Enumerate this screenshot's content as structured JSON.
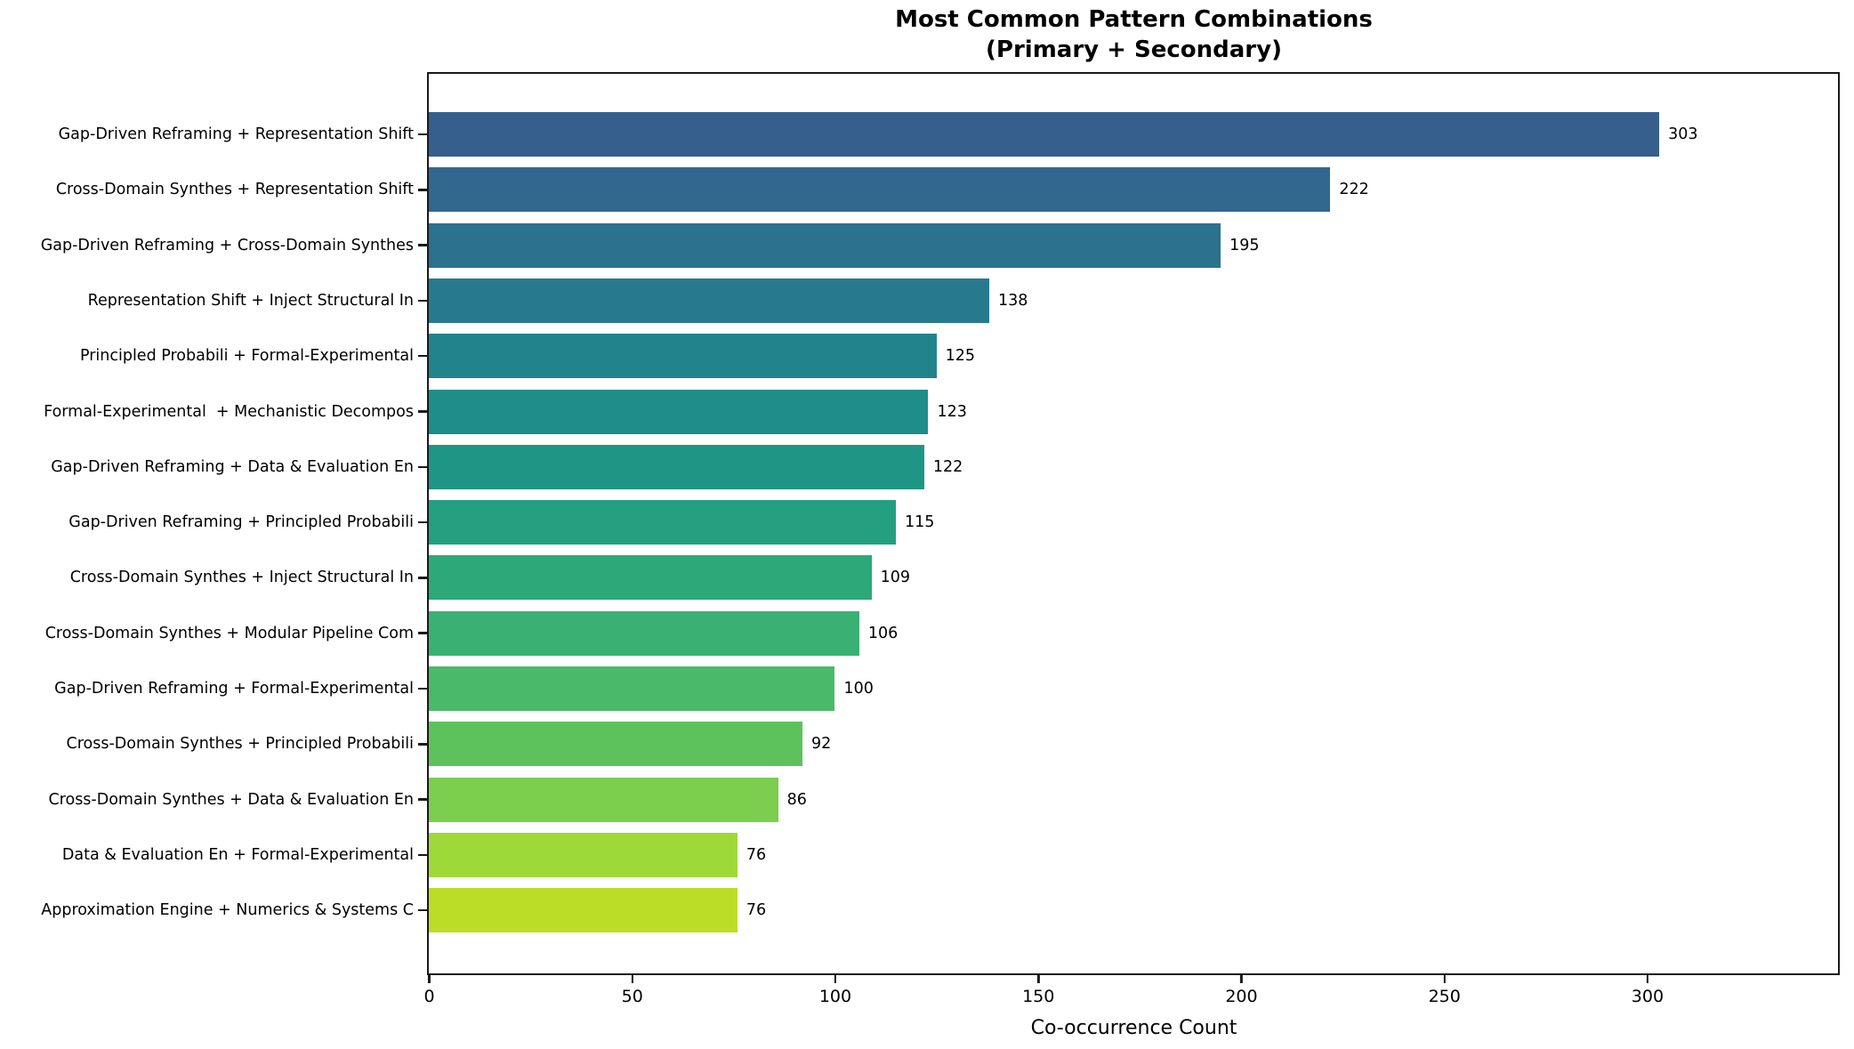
{
  "chart_data": {
    "type": "bar",
    "orientation": "horizontal",
    "title": "Most Common Pattern Combinations\n(Primary + Secondary)",
    "xlabel": "Co-occurrence Count",
    "ylabel": "",
    "xlim": [
      0,
      347
    ],
    "x_ticks": [
      0,
      50,
      100,
      150,
      200,
      250,
      300
    ],
    "grid": false,
    "legend": false,
    "background_color": "#ffffff",
    "axis_color": "#1a1a1a",
    "categories": [
      "Gap-Driven Reframing + Representation Shift",
      "Cross-Domain Synthes + Representation Shift",
      "Gap-Driven Reframing + Cross-Domain Synthes",
      "Representation Shift + Inject Structural In",
      "Principled Probabili + Formal-Experimental",
      "Formal-Experimental  + Mechanistic Decompos",
      "Gap-Driven Reframing + Data & Evaluation En",
      "Gap-Driven Reframing + Principled Probabili",
      "Cross-Domain Synthes + Inject Structural In",
      "Cross-Domain Synthes + Modular Pipeline Com",
      "Gap-Driven Reframing + Formal-Experimental",
      "Cross-Domain Synthes + Principled Probabili",
      "Cross-Domain Synthes + Data & Evaluation En",
      "Data & Evaluation En + Formal-Experimental",
      "Approximation Engine + Numerics & Systems C"
    ],
    "values": [
      303,
      222,
      195,
      138,
      125,
      123,
      122,
      115,
      109,
      106,
      100,
      92,
      86,
      76,
      76
    ],
    "bar_colors": [
      "#365f8d",
      "#32688e",
      "#2c718e",
      "#277a8e",
      "#22838c",
      "#1f8d89",
      "#1f9685",
      "#249f80",
      "#2ca879",
      "#3ab173",
      "#4ab969",
      "#5ec25c",
      "#7bce4e",
      "#9ed93a",
      "#bcdd28"
    ]
  }
}
